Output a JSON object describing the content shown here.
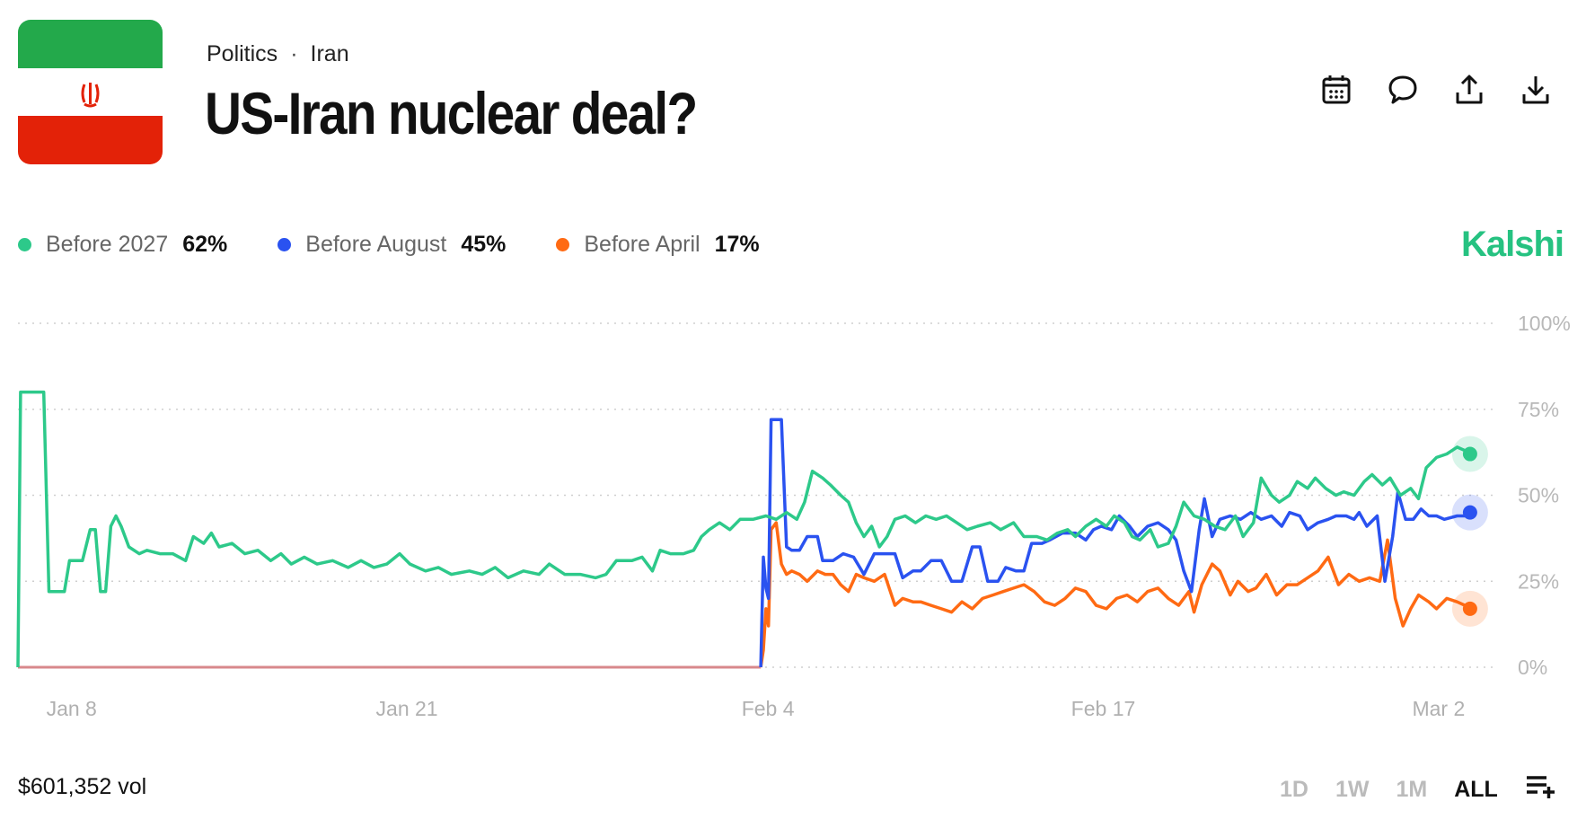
{
  "header": {
    "breadcrumbs": [
      "Politics",
      "Iran"
    ],
    "breadcrumb_separator": "·",
    "title": "US-Iran nuclear deal?"
  },
  "toolbar": {
    "icons": [
      "calendar-icon",
      "comment-icon",
      "share-icon",
      "download-icon"
    ]
  },
  "brand": "Kalshi",
  "legend": [
    {
      "name": "Before 2027",
      "value": "62%",
      "color": "#2dc98a"
    },
    {
      "name": "Before August",
      "value": "45%",
      "color": "#2a52f0"
    },
    {
      "name": "Before April",
      "value": "17%",
      "color": "#ff6a13"
    }
  ],
  "footer": {
    "volume": "$601,352 vol",
    "ranges": [
      "1D",
      "1W",
      "1M",
      "ALL"
    ],
    "active_range": "ALL"
  },
  "chart_data": {
    "type": "line",
    "x_domain": [
      "Jan 7",
      "Mar 3"
    ],
    "x_ticks": [
      {
        "label": "Jan 8",
        "day": 8
      },
      {
        "label": "Jan 21",
        "day": 21
      },
      {
        "label": "Feb 4",
        "day": 35
      },
      {
        "label": "Feb 17",
        "day": 48
      },
      {
        "label": "Mar 2",
        "day": 61
      }
    ],
    "y_ticks": [
      "0%",
      "25%",
      "50%",
      "75%",
      "100%"
    ],
    "ylim": [
      0,
      100
    ],
    "grid": "horizontal-dotted",
    "series": [
      {
        "name": "Before 2027",
        "color": "#2dc98a",
        "end_value": 62,
        "points": [
          [
            7.0,
            0
          ],
          [
            7.1,
            80
          ],
          [
            8.0,
            80
          ],
          [
            8.2,
            22
          ],
          [
            8.8,
            22
          ],
          [
            9.0,
            31
          ],
          [
            9.5,
            31
          ],
          [
            9.8,
            40
          ],
          [
            10.0,
            40
          ],
          [
            10.2,
            22
          ],
          [
            10.4,
            22
          ],
          [
            10.6,
            41
          ],
          [
            10.8,
            44
          ],
          [
            11.0,
            41
          ],
          [
            11.3,
            35
          ],
          [
            11.7,
            33
          ],
          [
            12.0,
            34
          ],
          [
            12.5,
            33
          ],
          [
            13.0,
            33
          ],
          [
            13.5,
            31
          ],
          [
            13.8,
            38
          ],
          [
            14.2,
            36
          ],
          [
            14.5,
            39
          ],
          [
            14.8,
            35
          ],
          [
            15.3,
            36
          ],
          [
            15.8,
            33
          ],
          [
            16.3,
            34
          ],
          [
            16.8,
            31
          ],
          [
            17.2,
            33
          ],
          [
            17.6,
            30
          ],
          [
            18.1,
            32
          ],
          [
            18.6,
            30
          ],
          [
            19.2,
            31
          ],
          [
            19.8,
            29
          ],
          [
            20.3,
            31
          ],
          [
            20.8,
            29
          ],
          [
            21.3,
            30
          ],
          [
            21.8,
            33
          ],
          [
            22.2,
            30
          ],
          [
            22.8,
            28
          ],
          [
            23.3,
            29
          ],
          [
            23.8,
            27
          ],
          [
            24.5,
            28
          ],
          [
            25.0,
            27
          ],
          [
            25.5,
            29
          ],
          [
            26.0,
            26
          ],
          [
            26.6,
            28
          ],
          [
            27.2,
            27
          ],
          [
            27.6,
            30
          ],
          [
            28.2,
            27
          ],
          [
            28.8,
            27
          ],
          [
            29.4,
            26
          ],
          [
            29.8,
            27
          ],
          [
            30.2,
            31
          ],
          [
            30.8,
            31
          ],
          [
            31.2,
            32
          ],
          [
            31.6,
            28
          ],
          [
            31.9,
            34
          ],
          [
            32.3,
            33
          ],
          [
            32.8,
            33
          ],
          [
            33.2,
            34
          ],
          [
            33.5,
            38
          ],
          [
            33.8,
            40
          ],
          [
            34.2,
            42
          ],
          [
            34.6,
            40
          ],
          [
            35.0,
            43
          ],
          [
            35.5,
            43
          ],
          [
            36.0,
            44
          ],
          [
            36.4,
            43
          ],
          [
            36.8,
            45
          ],
          [
            37.2,
            43
          ],
          [
            37.5,
            48
          ],
          [
            37.8,
            57
          ],
          [
            38.2,
            55
          ],
          [
            38.5,
            53
          ],
          [
            38.9,
            50
          ],
          [
            39.2,
            48
          ],
          [
            39.5,
            42
          ],
          [
            39.8,
            38
          ],
          [
            40.1,
            41
          ],
          [
            40.4,
            35
          ],
          [
            40.7,
            38
          ],
          [
            41.0,
            43
          ],
          [
            41.4,
            44
          ],
          [
            41.8,
            42
          ],
          [
            42.2,
            44
          ],
          [
            42.6,
            43
          ],
          [
            43.0,
            44
          ],
          [
            43.4,
            42
          ],
          [
            43.8,
            40
          ],
          [
            44.2,
            41
          ],
          [
            44.7,
            42
          ],
          [
            45.1,
            40
          ],
          [
            45.6,
            42
          ],
          [
            46.0,
            38
          ],
          [
            46.5,
            38
          ],
          [
            46.9,
            37
          ],
          [
            47.3,
            39
          ],
          [
            47.7,
            40
          ],
          [
            48.0,
            38
          ],
          [
            48.4,
            41
          ],
          [
            48.8,
            43
          ],
          [
            49.2,
            41
          ],
          [
            49.5,
            44
          ],
          [
            49.9,
            42
          ],
          [
            50.2,
            38
          ],
          [
            50.5,
            37
          ],
          [
            50.9,
            40
          ],
          [
            51.2,
            35
          ],
          [
            51.6,
            36
          ],
          [
            51.9,
            41
          ],
          [
            52.2,
            48
          ],
          [
            52.6,
            44
          ],
          [
            53.0,
            43
          ],
          [
            53.4,
            41
          ],
          [
            53.8,
            40
          ],
          [
            54.2,
            44
          ],
          [
            54.5,
            38
          ],
          [
            54.9,
            42
          ],
          [
            55.2,
            55
          ],
          [
            55.6,
            50
          ],
          [
            55.9,
            48
          ],
          [
            56.3,
            50
          ],
          [
            56.6,
            54
          ],
          [
            57.0,
            52
          ],
          [
            57.3,
            55
          ],
          [
            57.7,
            52
          ],
          [
            58.1,
            50
          ],
          [
            58.4,
            51
          ],
          [
            58.8,
            50
          ],
          [
            59.2,
            54
          ],
          [
            59.5,
            56
          ],
          [
            59.9,
            53
          ],
          [
            60.2,
            55
          ],
          [
            60.6,
            50
          ],
          [
            61.0,
            52
          ],
          [
            61.3,
            49
          ],
          [
            61.6,
            58
          ],
          [
            62.0,
            61
          ],
          [
            62.4,
            62
          ],
          [
            62.8,
            64
          ],
          [
            63.1,
            63
          ],
          [
            63.3,
            62
          ]
        ]
      },
      {
        "name": "Before August",
        "color": "#2a52f0",
        "end_value": 45,
        "start_day": 35.8,
        "points": [
          [
            35.8,
            0
          ],
          [
            35.9,
            32
          ],
          [
            36.0,
            23
          ],
          [
            36.1,
            20
          ],
          [
            36.2,
            72
          ],
          [
            36.6,
            72
          ],
          [
            36.8,
            35
          ],
          [
            37.0,
            34
          ],
          [
            37.3,
            34
          ],
          [
            37.6,
            38
          ],
          [
            38.0,
            38
          ],
          [
            38.2,
            31
          ],
          [
            38.6,
            31
          ],
          [
            39.0,
            33
          ],
          [
            39.4,
            32
          ],
          [
            39.8,
            27
          ],
          [
            40.2,
            33
          ],
          [
            40.6,
            33
          ],
          [
            41.0,
            33
          ],
          [
            41.3,
            26
          ],
          [
            41.7,
            28
          ],
          [
            42.0,
            28
          ],
          [
            42.4,
            31
          ],
          [
            42.8,
            31
          ],
          [
            43.2,
            25
          ],
          [
            43.6,
            25
          ],
          [
            44.0,
            35
          ],
          [
            44.3,
            35
          ],
          [
            44.6,
            25
          ],
          [
            45.0,
            25
          ],
          [
            45.3,
            29
          ],
          [
            45.7,
            28
          ],
          [
            46.0,
            28
          ],
          [
            46.3,
            36
          ],
          [
            46.7,
            36
          ],
          [
            47.0,
            37
          ],
          [
            47.5,
            39
          ],
          [
            48.0,
            39
          ],
          [
            48.4,
            37
          ],
          [
            48.7,
            40
          ],
          [
            49.0,
            41
          ],
          [
            49.4,
            40
          ],
          [
            49.7,
            44
          ],
          [
            50.1,
            41
          ],
          [
            50.4,
            38
          ],
          [
            50.8,
            41
          ],
          [
            51.2,
            42
          ],
          [
            51.6,
            40
          ],
          [
            51.9,
            37
          ],
          [
            52.2,
            28
          ],
          [
            52.5,
            22
          ],
          [
            52.8,
            40
          ],
          [
            53.0,
            49
          ],
          [
            53.3,
            38
          ],
          [
            53.6,
            43
          ],
          [
            54.0,
            44
          ],
          [
            54.4,
            43
          ],
          [
            54.8,
            45
          ],
          [
            55.2,
            43
          ],
          [
            55.6,
            44
          ],
          [
            56.0,
            41
          ],
          [
            56.3,
            45
          ],
          [
            56.7,
            44
          ],
          [
            57.0,
            40
          ],
          [
            57.4,
            42
          ],
          [
            57.8,
            43
          ],
          [
            58.1,
            44
          ],
          [
            58.5,
            44
          ],
          [
            58.8,
            43
          ],
          [
            59.0,
            45
          ],
          [
            59.3,
            41
          ],
          [
            59.7,
            44
          ],
          [
            60.0,
            25
          ],
          [
            60.3,
            38
          ],
          [
            60.5,
            51
          ],
          [
            60.8,
            43
          ],
          [
            61.1,
            43
          ],
          [
            61.4,
            46
          ],
          [
            61.7,
            44
          ],
          [
            62.0,
            44
          ],
          [
            62.3,
            43
          ],
          [
            62.8,
            44
          ],
          [
            63.1,
            44
          ],
          [
            63.3,
            45
          ]
        ]
      },
      {
        "name": "Before April",
        "color": "#ff6a13",
        "end_value": 17,
        "start_day": 35.8,
        "points": [
          [
            35.8,
            0
          ],
          [
            35.9,
            5
          ],
          [
            36.0,
            17
          ],
          [
            36.1,
            12
          ],
          [
            36.2,
            40
          ],
          [
            36.4,
            42
          ],
          [
            36.6,
            30
          ],
          [
            36.8,
            27
          ],
          [
            37.0,
            28
          ],
          [
            37.3,
            27
          ],
          [
            37.6,
            25
          ],
          [
            38.0,
            28
          ],
          [
            38.3,
            27
          ],
          [
            38.6,
            27
          ],
          [
            38.9,
            24
          ],
          [
            39.2,
            22
          ],
          [
            39.5,
            27
          ],
          [
            39.8,
            26
          ],
          [
            40.2,
            25
          ],
          [
            40.6,
            27
          ],
          [
            41.0,
            18
          ],
          [
            41.3,
            20
          ],
          [
            41.7,
            19
          ],
          [
            42.0,
            19
          ],
          [
            42.4,
            18
          ],
          [
            42.8,
            17
          ],
          [
            43.2,
            16
          ],
          [
            43.6,
            19
          ],
          [
            44.0,
            17
          ],
          [
            44.4,
            20
          ],
          [
            44.8,
            21
          ],
          [
            45.2,
            22
          ],
          [
            45.6,
            23
          ],
          [
            46.0,
            24
          ],
          [
            46.4,
            22
          ],
          [
            46.8,
            19
          ],
          [
            47.2,
            18
          ],
          [
            47.6,
            20
          ],
          [
            48.0,
            23
          ],
          [
            48.4,
            22
          ],
          [
            48.8,
            18
          ],
          [
            49.2,
            17
          ],
          [
            49.6,
            20
          ],
          [
            50.0,
            21
          ],
          [
            50.4,
            19
          ],
          [
            50.8,
            22
          ],
          [
            51.2,
            23
          ],
          [
            51.6,
            20
          ],
          [
            52.0,
            18
          ],
          [
            52.4,
            22
          ],
          [
            52.6,
            16
          ],
          [
            52.9,
            24
          ],
          [
            53.3,
            30
          ],
          [
            53.6,
            28
          ],
          [
            54.0,
            21
          ],
          [
            54.3,
            25
          ],
          [
            54.7,
            22
          ],
          [
            55.0,
            23
          ],
          [
            55.4,
            27
          ],
          [
            55.8,
            21
          ],
          [
            56.2,
            24
          ],
          [
            56.6,
            24
          ],
          [
            57.0,
            26
          ],
          [
            57.4,
            28
          ],
          [
            57.8,
            32
          ],
          [
            58.2,
            24
          ],
          [
            58.6,
            27
          ],
          [
            59.0,
            25
          ],
          [
            59.4,
            26
          ],
          [
            59.8,
            25
          ],
          [
            60.1,
            37
          ],
          [
            60.4,
            20
          ],
          [
            60.7,
            12
          ],
          [
            61.0,
            17
          ],
          [
            61.3,
            21
          ],
          [
            61.7,
            19
          ],
          [
            62.0,
            17
          ],
          [
            62.4,
            20
          ],
          [
            62.8,
            19
          ],
          [
            63.1,
            18
          ],
          [
            63.3,
            17
          ]
        ]
      }
    ]
  }
}
